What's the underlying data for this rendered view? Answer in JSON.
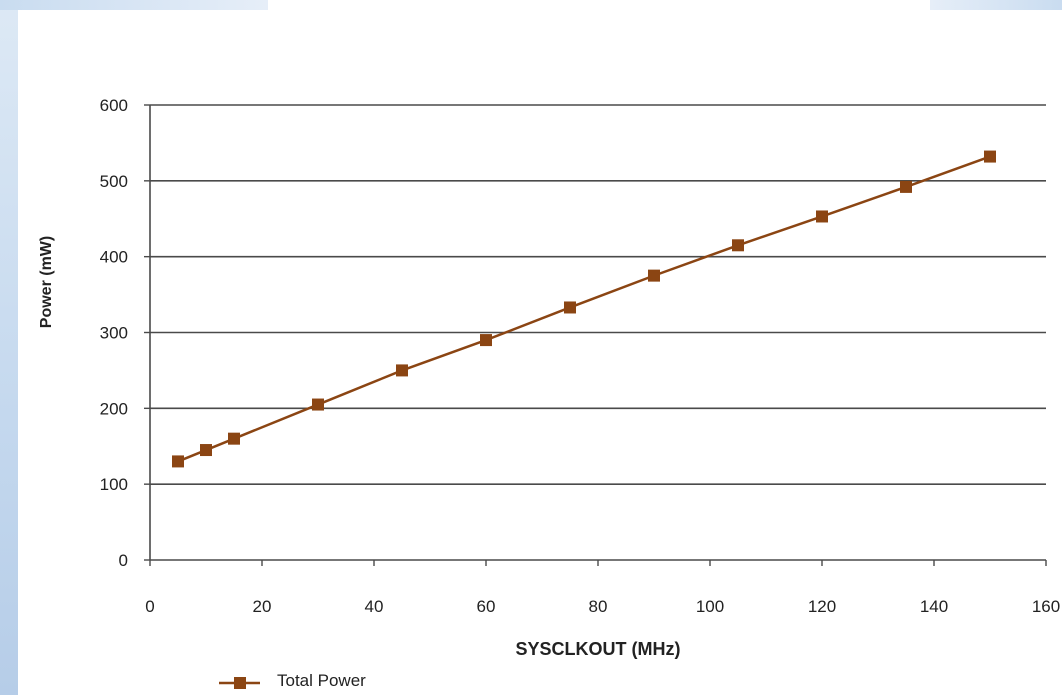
{
  "chart_data": {
    "type": "line",
    "xlabel": "SYSCLKOUT (MHz)",
    "ylabel": "Power (mW)",
    "xlim": [
      0,
      160
    ],
    "ylim": [
      0,
      600
    ],
    "xticks": [
      0,
      20,
      40,
      60,
      80,
      100,
      120,
      140,
      160
    ],
    "yticks": [
      0,
      100,
      200,
      300,
      400,
      500,
      600
    ],
    "grid": "horizontal",
    "legend_position": "bottom-left",
    "series": [
      {
        "name": "Total Power",
        "color": "#8b4513",
        "marker": "square",
        "x": [
          5,
          10,
          15,
          30,
          45,
          60,
          75,
          90,
          105,
          120,
          135,
          150
        ],
        "y": [
          130,
          145,
          160,
          205,
          250,
          290,
          333,
          375,
          415,
          453,
          492,
          532
        ]
      }
    ]
  }
}
